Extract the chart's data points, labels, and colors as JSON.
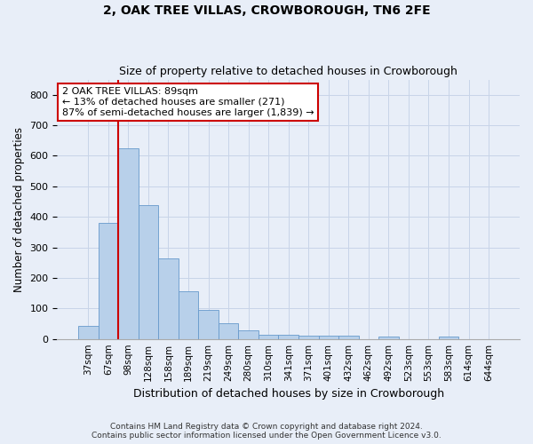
{
  "title": "2, OAK TREE VILLAS, CROWBOROUGH, TN6 2FE",
  "subtitle": "Size of property relative to detached houses in Crowborough",
  "xlabel": "Distribution of detached houses by size in Crowborough",
  "ylabel": "Number of detached properties",
  "categories": [
    "37sqm",
    "67sqm",
    "98sqm",
    "128sqm",
    "158sqm",
    "189sqm",
    "219sqm",
    "249sqm",
    "280sqm",
    "310sqm",
    "341sqm",
    "371sqm",
    "401sqm",
    "432sqm",
    "462sqm",
    "492sqm",
    "523sqm",
    "553sqm",
    "583sqm",
    "614sqm",
    "644sqm"
  ],
  "values": [
    42,
    380,
    625,
    437,
    265,
    155,
    95,
    52,
    28,
    15,
    15,
    10,
    10,
    10,
    0,
    8,
    0,
    0,
    8,
    0,
    0
  ],
  "bar_color": "#b8d0ea",
  "bar_edge_color": "#6699cc",
  "grid_color": "#c8d4e8",
  "vline_x": 1.5,
  "vline_color": "#cc0000",
  "annotation_text": "2 OAK TREE VILLAS: 89sqm\n← 13% of detached houses are smaller (271)\n87% of semi-detached houses are larger (1,839) →",
  "annotation_box_color": "#ffffff",
  "annotation_box_edge": "#cc0000",
  "footnote": "Contains HM Land Registry data © Crown copyright and database right 2024.\nContains public sector information licensed under the Open Government Licence v3.0.",
  "ylim": [
    0,
    850
  ],
  "background_color": "#e8eef8",
  "figsize": [
    6.0,
    5.0
  ],
  "dpi": 100
}
